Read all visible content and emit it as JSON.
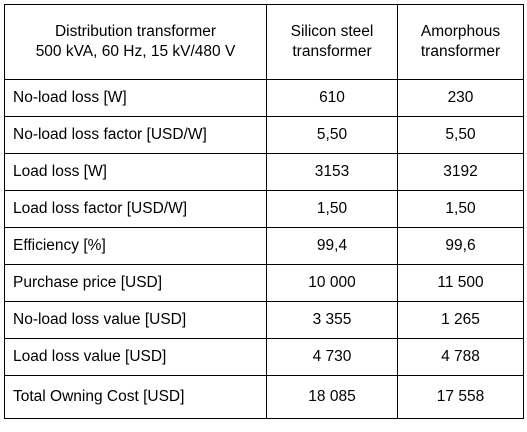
{
  "table": {
    "header": {
      "col1": [
        "Distribution transformer",
        "500 kVA, 60 Hz, 15 kV/480 V"
      ],
      "col2": [
        "Silicon steel",
        "transformer"
      ],
      "col3": [
        "Amorphous",
        "transformer"
      ]
    },
    "rows": [
      {
        "label": "No-load loss [W]",
        "silicon": "610",
        "amorphous": "230"
      },
      {
        "label": "No-load loss factor [USD/W]",
        "silicon": "5,50",
        "amorphous": "5,50"
      },
      {
        "label": "Load loss [W]",
        "silicon": "3153",
        "amorphous": "3192"
      },
      {
        "label": "Load loss factor [USD/W]",
        "silicon": "1,50",
        "amorphous": "1,50"
      },
      {
        "label": "Efficiency [%]",
        "silicon": "99,4",
        "amorphous": "99,6"
      },
      {
        "label": "Purchase price [USD]",
        "silicon": "10 000",
        "amorphous": "11 500"
      },
      {
        "label": "No-load loss value [USD]",
        "silicon": "3 355",
        "amorphous": "1 265"
      },
      {
        "label": "Load loss value [USD]",
        "silicon": "4 730",
        "amorphous": "4 788"
      },
      {
        "label": "Total Owning Cost [USD]",
        "silicon": "18 085",
        "amorphous": "17 558"
      }
    ]
  }
}
